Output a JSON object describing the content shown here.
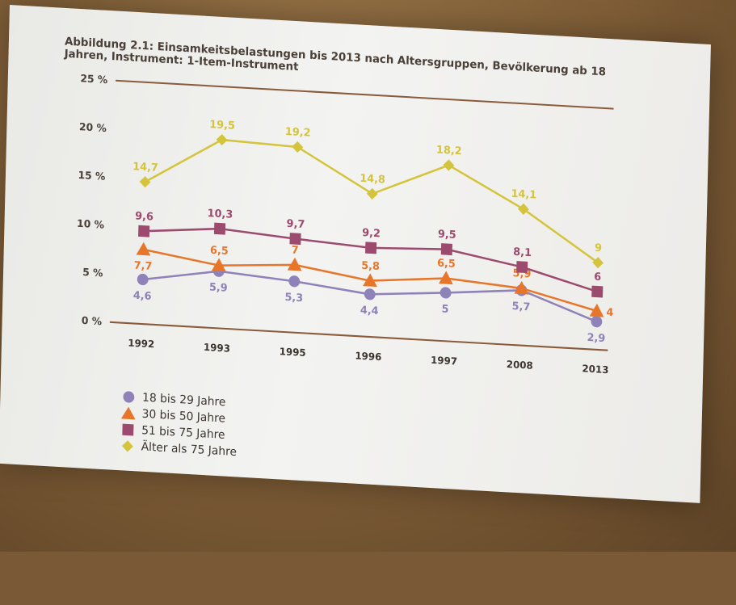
{
  "title": "Abbildung 2.1: Einsamkeitsbelastungen bis 2013 nach Altersgruppen, Bevölkerung ab 18 Jahren, Instrument: 1-Item-Instrument",
  "chart_data": {
    "type": "line",
    "title": "Abbildung 2.1: Einsamkeitsbelastungen bis 2013 nach Altersgruppen, Bevölkerung ab 18 Jahren, Instrument: 1-Item-Instrument",
    "categories": [
      "1992",
      "1993",
      "1995",
      "1996",
      "1997",
      "2008",
      "2013"
    ],
    "ylim": [
      0,
      25
    ],
    "yticks": [
      "0 %",
      "5 %",
      "10 %",
      "15 %",
      "20 %",
      "25 %"
    ],
    "ytick_values": [
      0,
      5,
      10,
      15,
      20,
      25
    ],
    "grid": false,
    "legend_position": "bottom-left",
    "series": [
      {
        "name": "18 bis 29 Jahre",
        "marker": "circle",
        "color": "#8f82b8",
        "values": [
          4.6,
          5.9,
          5.3,
          4.4,
          5,
          5.7,
          2.9
        ],
        "labels": [
          "4,6",
          "5,9",
          "5,3",
          "4,4",
          "5",
          "5,7",
          "2,9"
        ]
      },
      {
        "name": "30 bis 50 Jahre",
        "marker": "triangle",
        "color": "#e8762a",
        "values": [
          7.7,
          6.5,
          7,
          5.8,
          6.5,
          5.9,
          4
        ],
        "labels": [
          "7,7",
          "6,5",
          "7",
          "5,8",
          "6,5",
          "5,9",
          "4"
        ]
      },
      {
        "name": "51 bis 75 Jahre",
        "marker": "square",
        "color": "#9c4a6e",
        "values": [
          9.6,
          10.3,
          9.7,
          9.2,
          9.5,
          8.1,
          6
        ],
        "labels": [
          "9,6",
          "10,3",
          "9,7",
          "9,2",
          "9,5",
          "8,1",
          "6"
        ]
      },
      {
        "name": "Älter als 75 Jahre",
        "marker": "diamond",
        "color": "#d4c43c",
        "values": [
          14.7,
          19.5,
          19.2,
          14.8,
          18.2,
          14.1,
          9
        ],
        "labels": [
          "14,7",
          "19,5",
          "19,2",
          "14,8",
          "18,2",
          "14,1",
          "9"
        ]
      }
    ]
  }
}
